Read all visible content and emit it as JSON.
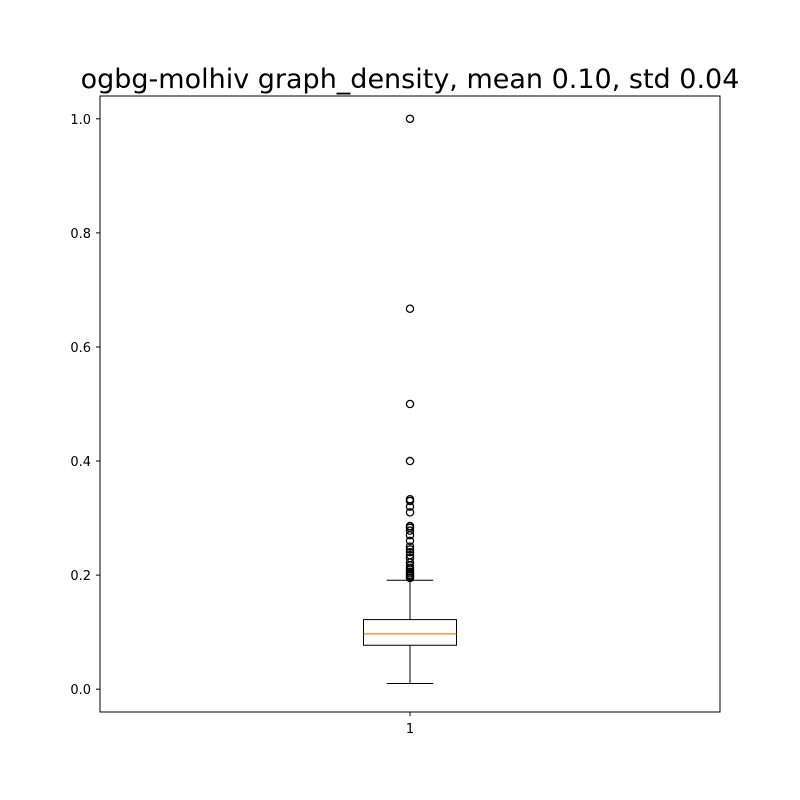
{
  "chart_data": {
    "type": "boxplot",
    "title": "ogbg-molhiv graph_density, mean 0.10, std 0.04",
    "xlabel": "",
    "ylabel": "",
    "categories": [
      "1"
    ],
    "ylim": [
      -0.04,
      1.04
    ],
    "yticks": [
      0.0,
      0.2,
      0.4,
      0.6,
      0.8,
      1.0
    ],
    "ytick_labels": [
      "0.0",
      "0.2",
      "0.4",
      "0.6",
      "0.8",
      "1.0"
    ],
    "grid": false,
    "boxes": [
      {
        "category": "1",
        "whisker_low": 0.01,
        "q1": 0.077,
        "median": 0.097,
        "q3": 0.122,
        "whisker_high": 0.191,
        "outliers": [
          0.195,
          0.198,
          0.2,
          0.203,
          0.206,
          0.21,
          0.213,
          0.217,
          0.222,
          0.23,
          0.235,
          0.24,
          0.245,
          0.25,
          0.26,
          0.27,
          0.278,
          0.283,
          0.286,
          0.31,
          0.32,
          0.33,
          0.333,
          0.4,
          0.5,
          0.667,
          1.0
        ]
      }
    ],
    "colors": {
      "box": "#000000",
      "median": "#ff7f0e",
      "outlier": "#000000"
    }
  }
}
